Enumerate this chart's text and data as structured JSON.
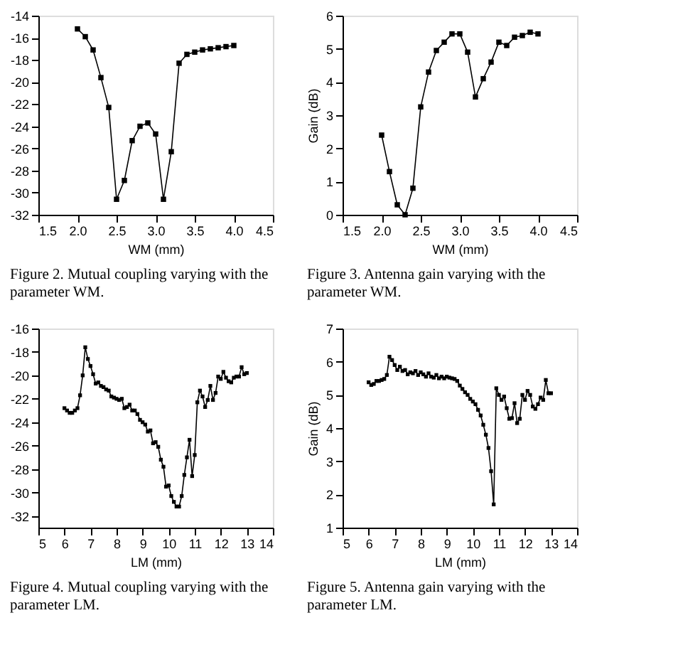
{
  "chart_data": [
    {
      "type": "line",
      "xlabel": "WM (mm)",
      "marker": "square",
      "grid": false,
      "annotations": [
        "Figure 2. Mutual coupling varying with the parameter WM."
      ],
      "xlim": [
        1.5,
        4.5
      ],
      "xticks": [
        1.5,
        {
          "value": 2,
          "label": "2.0"
        },
        2.5,
        {
          "value": 3,
          "label": "3.0"
        },
        3.5,
        {
          "value": 4,
          "label": "4.0"
        },
        4.5
      ],
      "ylim": [
        -32,
        -14
      ],
      "yticks": [
        -32,
        -30,
        -28,
        -26,
        -24,
        -22,
        -20,
        -18,
        -16,
        -14
      ],
      "series": [
        {
          "color": "#000000",
          "x": [
            2.0,
            2.1,
            2.2,
            2.3,
            2.4,
            2.5,
            2.6,
            2.7,
            2.8,
            2.9,
            3.0,
            3.1,
            3.2,
            3.3,
            3.4,
            3.5,
            3.6,
            3.7,
            3.8,
            3.9,
            4.0
          ],
          "values": [
            -15.2,
            -15.9,
            -17.1,
            -19.6,
            -22.3,
            -30.6,
            -28.9,
            -25.3,
            -24.0,
            -23.7,
            -24.7,
            -30.6,
            -26.3,
            -18.3,
            -17.5,
            -17.3,
            -17.1,
            -17.0,
            -16.9,
            -16.8,
            -16.7
          ]
        }
      ]
    },
    {
      "type": "line",
      "xlabel": "WM (mm)",
      "ylabel": "Gain (dB)",
      "marker": "square",
      "grid": false,
      "annotations": [
        "Figure 3. Antenna gain varying with the parameter WM."
      ],
      "xlim": [
        1.5,
        4.5
      ],
      "xticks": [
        1.5,
        {
          "value": 2,
          "label": "2.0"
        },
        2.5,
        {
          "value": 3,
          "label": "3.0"
        },
        3.5,
        {
          "value": 4,
          "label": "4.0"
        },
        4.5
      ],
      "ylim": [
        0,
        6
      ],
      "yticks": [
        0,
        1,
        2,
        3,
        4,
        5,
        6
      ],
      "series": [
        {
          "color": "#000000",
          "x": [
            2.0,
            2.1,
            2.2,
            2.3,
            2.4,
            2.5,
            2.6,
            2.7,
            2.8,
            2.9,
            3.0,
            3.1,
            3.2,
            3.3,
            3.4,
            3.5,
            3.6,
            3.7,
            3.8,
            3.9,
            4.0
          ],
          "values": [
            2.4,
            1.3,
            0.3,
            0.0,
            0.8,
            3.25,
            4.3,
            4.95,
            5.2,
            5.45,
            5.45,
            4.9,
            3.55,
            4.1,
            4.6,
            5.2,
            5.1,
            5.35,
            5.4,
            5.5,
            5.45
          ]
        }
      ]
    },
    {
      "type": "line",
      "xlabel": "LM (mm)",
      "marker": "square",
      "grid": false,
      "annotations": [
        "Figure 4. Mutual coupling varying with the parameter LM."
      ],
      "xlim": [
        5,
        14
      ],
      "xticks": [
        5,
        6,
        7,
        8,
        9,
        10,
        11,
        12,
        13,
        14
      ],
      "ylim": [
        -33,
        -16
      ],
      "yticks": [
        -32,
        -30,
        -28,
        -26,
        -24,
        -22,
        -20,
        -18,
        -16
      ],
      "series": [
        {
          "color": "#000000",
          "x": [
            6.0,
            6.1,
            6.2,
            6.3,
            6.4,
            6.5,
            6.6,
            6.7,
            6.8,
            6.9,
            7.0,
            7.1,
            7.2,
            7.3,
            7.4,
            7.5,
            7.6,
            7.7,
            7.8,
            7.9,
            8.0,
            8.1,
            8.2,
            8.3,
            8.4,
            8.5,
            8.6,
            8.7,
            8.8,
            8.9,
            9.0,
            9.1,
            9.2,
            9.3,
            9.4,
            9.5,
            9.6,
            9.7,
            9.8,
            9.9,
            10.0,
            10.1,
            10.2,
            10.3,
            10.4,
            10.5,
            10.6,
            10.7,
            10.8,
            10.9,
            11.0,
            11.1,
            11.2,
            11.3,
            11.4,
            11.5,
            11.6,
            11.7,
            11.8,
            11.9,
            12.0,
            12.1,
            12.2,
            12.3,
            12.4,
            12.5,
            12.6,
            12.7,
            12.8,
            12.9,
            13.0
          ],
          "values": [
            -22.8,
            -23.0,
            -23.2,
            -23.2,
            -23.0,
            -22.8,
            -21.7,
            -20.0,
            -17.6,
            -18.6,
            -19.2,
            -19.9,
            -20.7,
            -20.6,
            -20.9,
            -21.0,
            -21.2,
            -21.3,
            -21.8,
            -21.9,
            -22.0,
            -22.1,
            -22.0,
            -22.8,
            -22.7,
            -22.5,
            -23.0,
            -23.0,
            -23.3,
            -23.8,
            -24.0,
            -24.2,
            -24.8,
            -24.7,
            -25.8,
            -25.7,
            -26.1,
            -27.2,
            -27.8,
            -29.5,
            -29.4,
            -30.3,
            -30.8,
            -31.2,
            -31.2,
            -30.3,
            -28.5,
            -27.0,
            -25.5,
            -28.6,
            -26.8,
            -22.3,
            -21.3,
            -21.8,
            -22.7,
            -22.1,
            -20.9,
            -22.1,
            -21.5,
            -20.1,
            -20.3,
            -19.7,
            -20.2,
            -20.5,
            -20.6,
            -20.2,
            -20.1,
            -20.1,
            -19.3,
            -19.9,
            -19.8
          ]
        }
      ]
    },
    {
      "type": "line",
      "xlabel": "LM (mm)",
      "ylabel": "Gain (dB)",
      "marker": "square",
      "grid": false,
      "annotations": [
        "Figure 5. Antenna gain varying with the parameter LM."
      ],
      "xlim": [
        5,
        14
      ],
      "xticks": [
        5,
        6,
        7,
        8,
        9,
        10,
        11,
        12,
        13,
        14
      ],
      "ylim": [
        1,
        7
      ],
      "yticks": [
        1,
        2,
        3,
        4,
        5,
        6,
        7
      ],
      "series": [
        {
          "color": "#000000",
          "x": [
            6.0,
            6.1,
            6.2,
            6.3,
            6.4,
            6.5,
            6.6,
            6.7,
            6.8,
            6.9,
            7.0,
            7.1,
            7.2,
            7.3,
            7.4,
            7.5,
            7.6,
            7.7,
            7.8,
            7.9,
            8.0,
            8.1,
            8.2,
            8.3,
            8.4,
            8.5,
            8.6,
            8.7,
            8.8,
            8.9,
            9.0,
            9.1,
            9.2,
            9.3,
            9.4,
            9.5,
            9.6,
            9.7,
            9.8,
            9.9,
            10.0,
            10.1,
            10.2,
            10.3,
            10.4,
            10.5,
            10.6,
            10.7,
            10.8,
            10.9,
            11.0,
            11.1,
            11.2,
            11.3,
            11.4,
            11.5,
            11.6,
            11.7,
            11.8,
            11.9,
            12.0,
            12.1,
            12.2,
            12.3,
            12.4,
            12.5,
            12.6,
            12.7,
            12.8,
            12.9,
            13.0
          ],
          "values": [
            5.38,
            5.3,
            5.33,
            5.42,
            5.42,
            5.45,
            5.48,
            5.6,
            6.15,
            6.05,
            5.9,
            5.75,
            5.85,
            5.72,
            5.75,
            5.62,
            5.68,
            5.65,
            5.72,
            5.6,
            5.68,
            5.62,
            5.55,
            5.65,
            5.55,
            5.52,
            5.6,
            5.5,
            5.55,
            5.5,
            5.55,
            5.52,
            5.5,
            5.48,
            5.42,
            5.28,
            5.18,
            5.08,
            5.0,
            4.88,
            4.8,
            4.72,
            4.55,
            4.38,
            4.1,
            3.8,
            3.4,
            2.7,
            1.7,
            5.2,
            5.0,
            4.85,
            4.95,
            4.6,
            4.28,
            4.3,
            4.75,
            4.15,
            4.28,
            5.0,
            4.85,
            5.12,
            5.0,
            4.65,
            4.58,
            4.72,
            4.92,
            4.85,
            5.45,
            5.05,
            5.05
          ]
        }
      ]
    }
  ]
}
